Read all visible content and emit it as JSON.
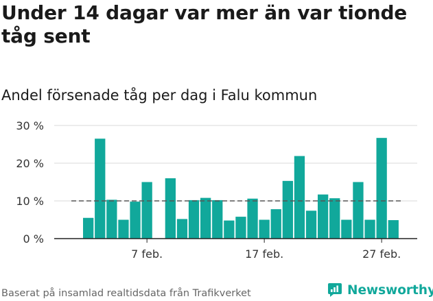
{
  "header": {
    "title": "Under 14 dagar var mer än var tionde tåg sent",
    "subtitle": "Andel försenade tåg per dag i Falu kommun"
  },
  "footer": {
    "source": "Baserat på insamlad realtidsdata från Trafikverket",
    "brand": "Newsworthy",
    "brand_icon": "newsworthy-logo-icon"
  },
  "colors": {
    "bar": "#11a89b",
    "reference_line": "#555555",
    "grid": "#d9d9d9",
    "axis": "#222222",
    "brand": "#11a89b"
  },
  "chart_data": {
    "type": "bar",
    "x_dates": [
      "2 feb.",
      "3 feb.",
      "4 feb.",
      "5 feb.",
      "6 feb.",
      "7 feb.",
      "8 feb.",
      "9 feb.",
      "10 feb.",
      "11 feb.",
      "12 feb.",
      "13 feb.",
      "14 feb.",
      "15 feb.",
      "16 feb.",
      "17 feb.",
      "18 feb.",
      "19 feb.",
      "20 feb.",
      "21 feb.",
      "22 feb.",
      "23 feb.",
      "24 feb.",
      "25 feb.",
      "26 feb.",
      "27 feb.",
      "28 feb."
    ],
    "values": [
      5.5,
      26.5,
      10.3,
      5.0,
      9.8,
      15.0,
      null,
      16.0,
      5.2,
      10.2,
      10.8,
      10.2,
      4.8,
      5.8,
      10.6,
      5.0,
      7.8,
      15.3,
      21.9,
      7.4,
      11.7,
      10.7,
      5.0,
      15.0,
      5.0,
      26.7,
      4.9
    ],
    "reference_line": 10,
    "y_ticks": [
      "0 %",
      "10 %",
      "20 %",
      "30 %"
    ],
    "y_tick_values": [
      0,
      10,
      20,
      30
    ],
    "ylim": [
      0,
      30
    ],
    "x_ticks": [
      "7 feb.",
      "17 feb.",
      "27 feb."
    ],
    "x_tick_indices": [
      5,
      15,
      25
    ],
    "grid": true
  }
}
